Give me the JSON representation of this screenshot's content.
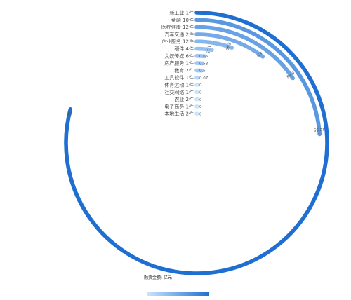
{
  "chart_data": {
    "type": "radial-bar",
    "categories": [
      "新工业",
      "金融",
      "医疗健康",
      "汽车交通",
      "企业服务",
      "硬件",
      "文娱传媒",
      "房产服务",
      "教育",
      "工具软件",
      "体育运动",
      "社交网络",
      "农业",
      "电子商务",
      "本地生活"
    ],
    "counts": [
      "1件",
      "10件",
      "12件",
      "2件",
      "12件",
      "4件",
      "6件",
      "1件",
      "7件",
      "1件",
      "1件",
      "1件",
      "2件",
      "1件",
      "2件"
    ],
    "values": [
      35,
      10.55,
      6.88,
      4.6,
      2.49,
      1.15,
      0.66,
      0.53,
      0.5,
      0.07,
      0,
      0,
      0,
      0,
      0
    ],
    "value_labels": [
      "35",
      "10.55",
      "6.88",
      "4.6",
      "2.49",
      "1.15",
      "0.66",
      "0.53",
      "0.5",
      "0.07",
      "0",
      "0",
      "0",
      "0",
      "0"
    ],
    "max_value": 35,
    "legend_title": "融资金额: 亿元",
    "colors": {
      "low": "#c9e4fb",
      "high": "#1f6fd2"
    }
  }
}
